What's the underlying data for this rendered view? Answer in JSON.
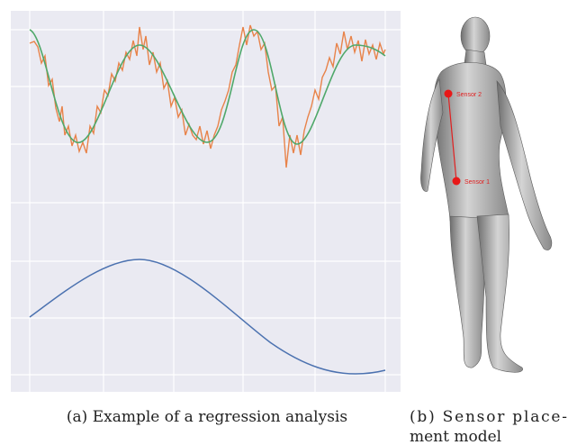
{
  "figures": [
    {
      "caption": "(a) Example of a regression analysis"
    },
    {
      "caption_lines": [
        "(b) Sensor place-",
        "ment model"
      ],
      "labels": [
        "Sensor 2",
        "Sensor 1"
      ]
    }
  ]
}
